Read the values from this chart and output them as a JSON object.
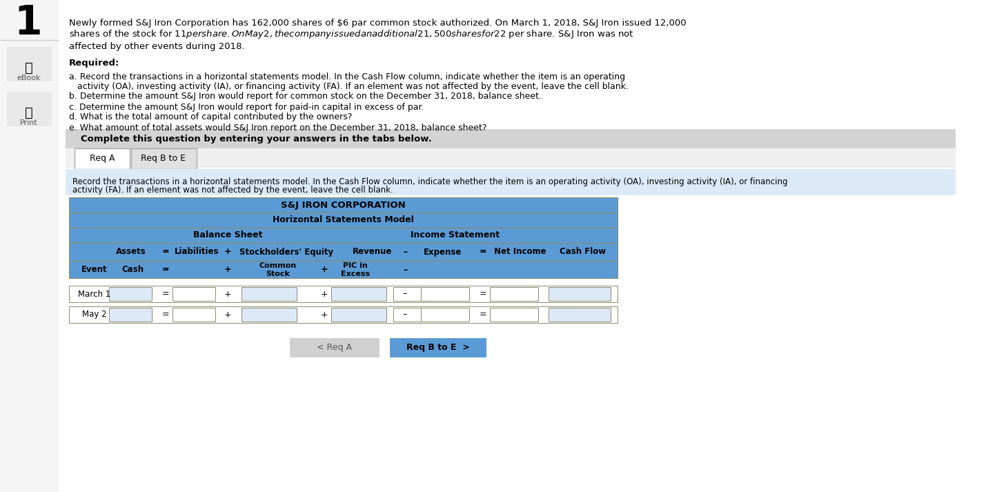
{
  "title_number": "1",
  "problem_text_line1": "Newly formed S&J Iron Corporation has 162,000 shares of $6 par common stock authorized. On March 1, 2018, S&J Iron issued 12,000",
  "problem_text_line2": "shares of the stock for $11 per share. On May 2, the company issued an additional 21,500 shares for $22 per share. S&J Iron was not",
  "problem_text_line3": "affected by other events during 2018.",
  "required_label": "Required:",
  "req_a": "a. Record the transactions in a horizontal statements model. In the Cash Flow column, indicate whether the item is an operating",
  "req_a2": "   activity (OA), investing activity (IA), or financing activity (FA). If an element was not affected by the event, leave the cell blank.",
  "req_b": "b. Determine the amount S&J Iron would report for common stock on the December 31, 2018, balance sheet.",
  "req_c": "c. Determine the amount S&J Iron would report for paid-in capital in excess of par.",
  "req_d": "d. What is the total amount of capital contributed by the owners?",
  "req_e": "e. What amount of total assets would S&J Iron report on the December 31, 2018, balance sheet?",
  "complete_text": "Complete this question by entering your answers in the tabs below.",
  "tab1": "Req A",
  "tab2": "Req B to E",
  "instruction_text1": "Record the transactions in a horizontal statements model. In the Cash Flow column, indicate whether the item is an operating activity (OA), investing activity (IA), or financing",
  "instruction_text2": "activity (FA). If an element was not affected by the event, leave the cell blank.",
  "corp_name": "S&J IRON CORPORATION",
  "model_name": "Horizontal Statements Model",
  "col_balance_sheet": "Balance Sheet",
  "col_income_stmt": "Income Statement",
  "col_assets": "Assets",
  "col_eq": "=",
  "col_liabilities": "Liabilities",
  "col_plus1": "+",
  "col_se": "Stockholders' Equity",
  "col_revenue": "Revenue",
  "col_minus": "–",
  "col_expense": "Expense",
  "col_eq2": "=",
  "col_net_income": "Net Income",
  "col_cash_flow": "Cash Flow",
  "col_cash": "Cash",
  "col_common_stock": "Common\nStock",
  "col_pic": "PIC in\nExcess",
  "row_event": "Event",
  "row_march1": "March 1",
  "row_may2": "May 2",
  "btn_req_a": "< Req A",
  "btn_req_be": "Req B to E  >",
  "header_bg": "#5b9bd5",
  "header_border": "#8b6914",
  "row_bg": "#ffffff",
  "tab_active_bg": "#ffffff",
  "tab_inactive_bg": "#e0e0e0",
  "complete_bg": "#d0d0d0",
  "instruction_bg": "#dce9f7",
  "btn_active_bg": "#5b9bd5",
  "btn_inactive_bg": "#d0d0d0"
}
